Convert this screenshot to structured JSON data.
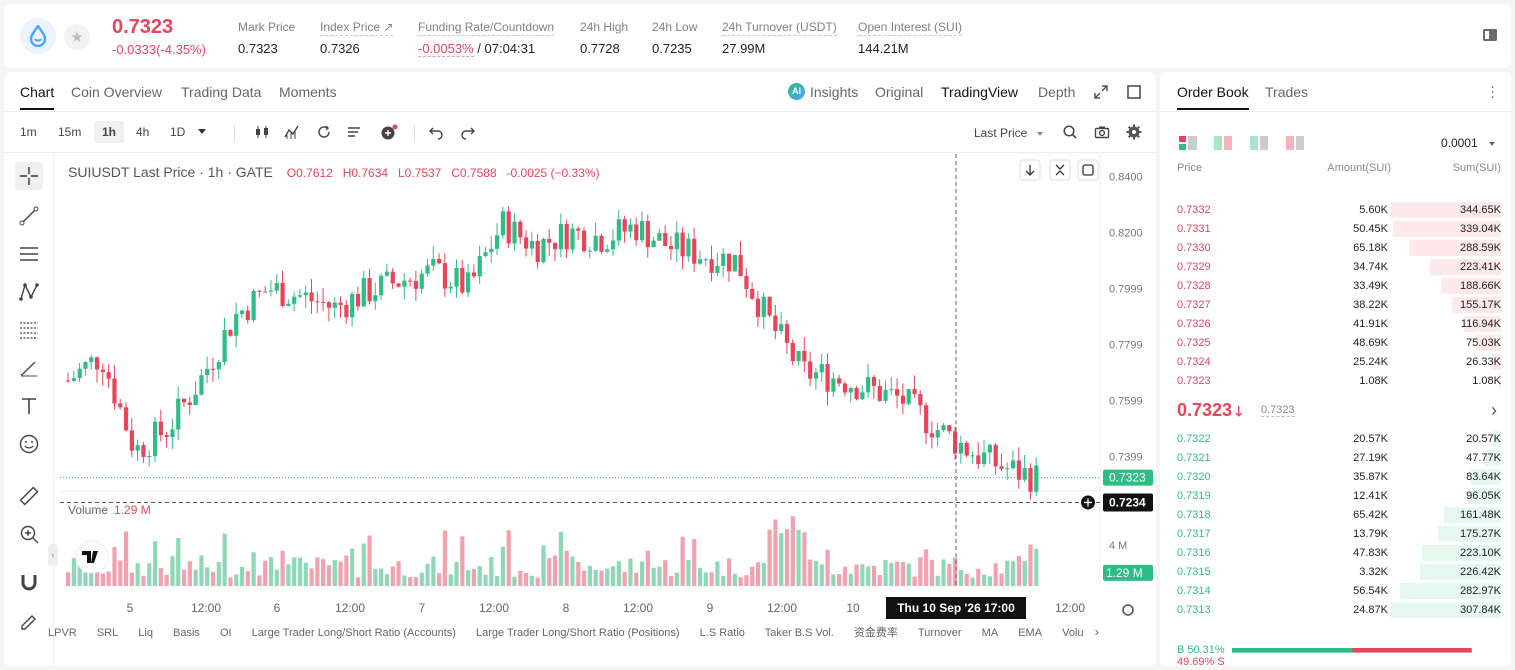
{
  "header": {
    "price": "0.7323",
    "change": "-0.0333(-4.35%)",
    "stats": [
      {
        "label": "Mark Price",
        "value": "0.7323"
      },
      {
        "label": "Index Price ↗",
        "value": "0.7326"
      },
      {
        "label": "Funding Rate/Countdown",
        "value_red": "-0.0053%",
        "value": " / 07:04:31"
      },
      {
        "label": "24h High",
        "value": "0.7728"
      },
      {
        "label": "24h Low",
        "value": "0.7235"
      },
      {
        "label": "24h Turnover (USDT)",
        "value": "27.99M"
      },
      {
        "label": "Open Interest (SUI)",
        "value": "144.21M"
      }
    ]
  },
  "chart_tabs": [
    "Chart",
    "Coin Overview",
    "Trading Data",
    "Moments"
  ],
  "view_tabs": {
    "insights": "Insights",
    "original": "Original",
    "tradingview": "TradingView",
    "depth": "Depth"
  },
  "timeframes": [
    "1m",
    "15m",
    "1h",
    "4h",
    "1D"
  ],
  "price_type": "Last Price",
  "legend": {
    "symbol": "SUIUSDT Last Price · 1h · GATE",
    "o": "O0.7612",
    "h": "H0.7634",
    "l": "L0.7537",
    "c": "C0.7588",
    "chg": "-0.0025 (−0.33%)"
  },
  "volume_label": {
    "name": "Volume",
    "value": "1.29 M"
  },
  "price_axis": [
    "0.8400",
    "0.8200",
    "0.7999",
    "0.7799",
    "0.7599",
    "0.7399"
  ],
  "vol_axis": [
    "8 M",
    "4 M"
  ],
  "price_tags": {
    "last": "0.7323",
    "cross": "0.7234",
    "vol": "1.29 M"
  },
  "time_axis": [
    "5",
    "12:00",
    "6",
    "12:00",
    "7",
    "12:00",
    "8",
    "12:00",
    "9",
    "12:00",
    "10",
    "12:00"
  ],
  "crosshair_time": "Thu 10 Sep '26   17:00",
  "indicators": [
    "LPVR",
    "SRL",
    "Liq",
    "Basis",
    "OI",
    "Large Trader Long/Short Ratio (Accounts)",
    "Large Trader Long/Short Ratio (Positions)",
    "L.S Ratio",
    "Taker B.S Vol.",
    "资金费率",
    "Turnover",
    "MA",
    "EMA",
    "Volu"
  ],
  "chart_data": {
    "type": "candlestick",
    "title": "SUIUSDT Last Price · 1h · GATE",
    "ylim": [
      0.73,
      0.848
    ],
    "y_ticks": [
      0.84,
      0.82,
      0.7999,
      0.7799,
      0.7599,
      0.7399
    ],
    "x_ticks": [
      "5",
      "12:00",
      "6",
      "12:00",
      "7",
      "12:00",
      "8",
      "12:00",
      "9",
      "12:00",
      "10",
      "12:00"
    ],
    "close_path": [
      0.767,
      0.776,
      0.742,
      0.75,
      0.768,
      0.79,
      0.8,
      0.797,
      0.793,
      0.799,
      0.803,
      0.806,
      0.8,
      0.823,
      0.815,
      0.82,
      0.818,
      0.822,
      0.815,
      0.812,
      0.81,
      0.788,
      0.77,
      0.768,
      0.764,
      0.76,
      0.75,
      0.742,
      0.736,
      0.7323
    ],
    "volume_ylim": [
      0,
      9
    ],
    "volume_ticks": [
      8,
      4
    ],
    "last_volume": 1.29
  },
  "orderbook": {
    "tabs": [
      "Order Book",
      "Trades"
    ],
    "precision": "0.0001",
    "headers": {
      "price": "Price",
      "amount": "Amount(SUI)",
      "sum": "Sum(SUI)"
    },
    "asks": [
      {
        "p": "0.7332",
        "a": "5.60K",
        "s": "344.65K",
        "depth": 1.0
      },
      {
        "p": "0.7331",
        "a": "50.45K",
        "s": "339.04K",
        "depth": 0.98
      },
      {
        "p": "0.7330",
        "a": "65.18K",
        "s": "288.59K",
        "depth": 0.84
      },
      {
        "p": "0.7329",
        "a": "34.74K",
        "s": "223.41K",
        "depth": 0.65
      },
      {
        "p": "0.7328",
        "a": "33.49K",
        "s": "188.66K",
        "depth": 0.55
      },
      {
        "p": "0.7327",
        "a": "38.22K",
        "s": "155.17K",
        "depth": 0.45
      },
      {
        "p": "0.7326",
        "a": "41.91K",
        "s": "116.94K",
        "depth": 0.34
      },
      {
        "p": "0.7325",
        "a": "48.69K",
        "s": "75.03K",
        "depth": 0.22
      },
      {
        "p": "0.7324",
        "a": "25.24K",
        "s": "26.33K",
        "depth": 0.08
      },
      {
        "p": "0.7323",
        "a": "1.08K",
        "s": "1.08K",
        "depth": 0.02
      }
    ],
    "mid": {
      "price": "0.7323",
      "mark": "0.7323"
    },
    "bids": [
      {
        "p": "0.7322",
        "a": "20.57K",
        "s": "20.57K",
        "depth": 0.07
      },
      {
        "p": "0.7321",
        "a": "27.19K",
        "s": "47.77K",
        "depth": 0.15
      },
      {
        "p": "0.7320",
        "a": "35.87K",
        "s": "83.64K",
        "depth": 0.27
      },
      {
        "p": "0.7319",
        "a": "12.41K",
        "s": "96.05K",
        "depth": 0.31
      },
      {
        "p": "0.7318",
        "a": "65.42K",
        "s": "161.48K",
        "depth": 0.52
      },
      {
        "p": "0.7317",
        "a": "13.79K",
        "s": "175.27K",
        "depth": 0.57
      },
      {
        "p": "0.7316",
        "a": "47.83K",
        "s": "223.10K",
        "depth": 0.72
      },
      {
        "p": "0.7315",
        "a": "3.32K",
        "s": "226.42K",
        "depth": 0.74
      },
      {
        "p": "0.7314",
        "a": "56.54K",
        "s": "282.97K",
        "depth": 0.92
      },
      {
        "p": "0.7313",
        "a": "24.87K",
        "s": "307.84K",
        "depth": 1.0
      }
    ],
    "buy_ratio": "B 50.31%",
    "sell_ratio": "49.69% S",
    "buy_fraction": 0.5031
  },
  "colors": {
    "up": "#2ebd85",
    "down": "#e8445a",
    "up_light": "#e6f7ef",
    "down_light": "#fde9ec"
  }
}
